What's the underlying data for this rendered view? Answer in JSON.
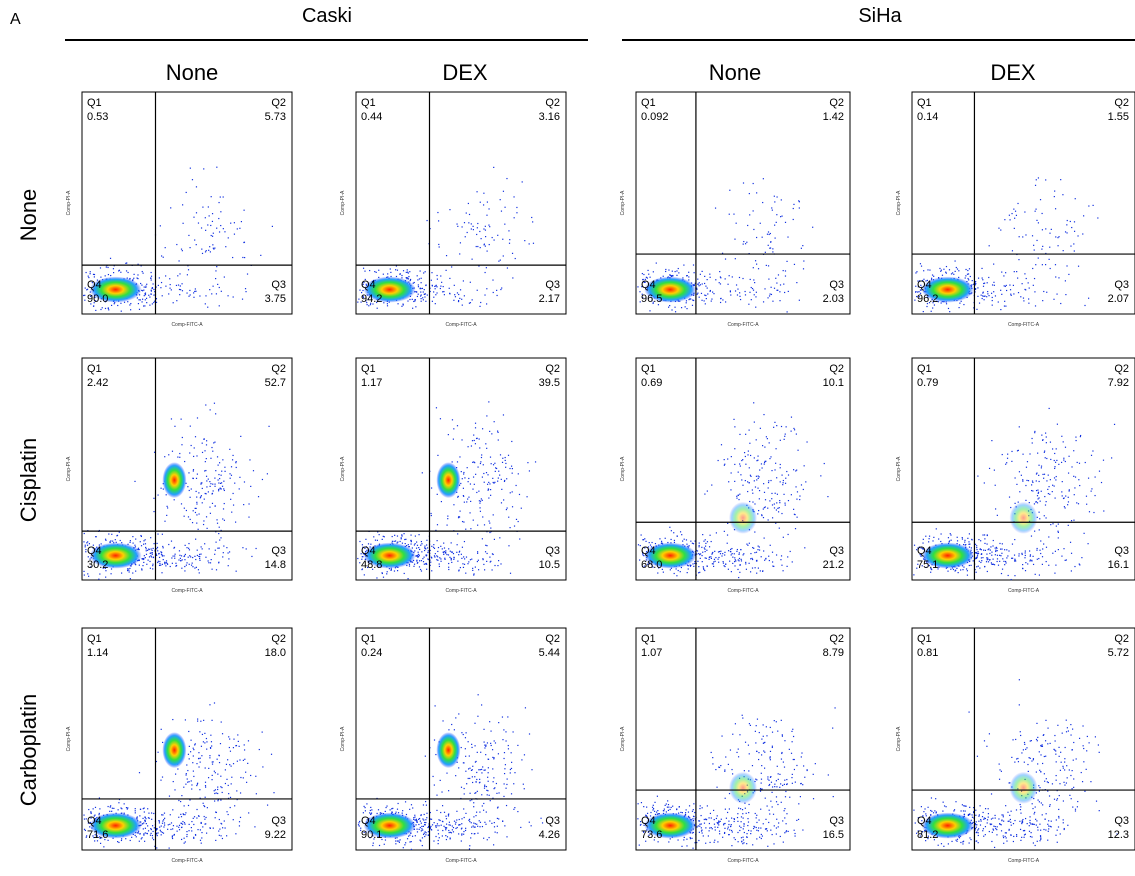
{
  "panel_label": "A",
  "groups": [
    {
      "title": "Caski",
      "columns": [
        "None",
        "DEX"
      ]
    },
    {
      "title": "SiHa",
      "columns": [
        "None",
        "DEX"
      ]
    }
  ],
  "rows": [
    "None",
    "Cisplatin",
    "Carboplatin"
  ],
  "x_axis_label": "Comp-FITC-A",
  "y_axis_label": "Comp-PI-A",
  "plots": [
    {
      "quadrants": [
        {
          "name": "Q1",
          "value": "0.53"
        },
        {
          "name": "Q2",
          "value": "5.73"
        },
        {
          "name": "Q3",
          "value": "3.75"
        },
        {
          "name": "Q4",
          "value": "90.0"
        }
      ]
    },
    {
      "quadrants": [
        {
          "name": "Q1",
          "value": "0.44"
        },
        {
          "name": "Q2",
          "value": "3.16"
        },
        {
          "name": "Q3",
          "value": "2.17"
        },
        {
          "name": "Q4",
          "value": "94.2"
        }
      ]
    },
    {
      "quadrants": [
        {
          "name": "Q1",
          "value": "0.092"
        },
        {
          "name": "Q2",
          "value": "1.42"
        },
        {
          "name": "Q3",
          "value": "2.03"
        },
        {
          "name": "Q4",
          "value": "96.5"
        }
      ]
    },
    {
      "quadrants": [
        {
          "name": "Q1",
          "value": "0.14"
        },
        {
          "name": "Q2",
          "value": "1.55"
        },
        {
          "name": "Q3",
          "value": "2.07"
        },
        {
          "name": "Q4",
          "value": "96.2"
        }
      ]
    },
    {
      "quadrants": [
        {
          "name": "Q1",
          "value": "2.42"
        },
        {
          "name": "Q2",
          "value": "52.7"
        },
        {
          "name": "Q3",
          "value": "14.8"
        },
        {
          "name": "Q4",
          "value": "30.2"
        }
      ]
    },
    {
      "quadrants": [
        {
          "name": "Q1",
          "value": "1.17"
        },
        {
          "name": "Q2",
          "value": "39.5"
        },
        {
          "name": "Q3",
          "value": "10.5"
        },
        {
          "name": "Q4",
          "value": "48.8"
        }
      ]
    },
    {
      "quadrants": [
        {
          "name": "Q1",
          "value": "0.69"
        },
        {
          "name": "Q2",
          "value": "10.1"
        },
        {
          "name": "Q3",
          "value": "21.2"
        },
        {
          "name": "Q4",
          "value": "68.0"
        }
      ]
    },
    {
      "quadrants": [
        {
          "name": "Q1",
          "value": "0.79"
        },
        {
          "name": "Q2",
          "value": "7.92"
        },
        {
          "name": "Q3",
          "value": "16.1"
        },
        {
          "name": "Q4",
          "value": "75.1"
        }
      ]
    },
    {
      "quadrants": [
        {
          "name": "Q1",
          "value": "1.14"
        },
        {
          "name": "Q2",
          "value": "18.0"
        },
        {
          "name": "Q3",
          "value": "9.22"
        },
        {
          "name": "Q4",
          "value": "71.6"
        }
      ]
    },
    {
      "quadrants": [
        {
          "name": "Q1",
          "value": "0.24"
        },
        {
          "name": "Q2",
          "value": "5.44"
        },
        {
          "name": "Q3",
          "value": "4.26"
        },
        {
          "name": "Q4",
          "value": "90.1"
        }
      ]
    },
    {
      "quadrants": [
        {
          "name": "Q1",
          "value": "1.07"
        },
        {
          "name": "Q2",
          "value": "8.79"
        },
        {
          "name": "Q3",
          "value": "16.5"
        },
        {
          "name": "Q4",
          "value": "73.6"
        }
      ]
    },
    {
      "quadrants": [
        {
          "name": "Q1",
          "value": "0.81"
        },
        {
          "name": "Q2",
          "value": "5.72"
        },
        {
          "name": "Q3",
          "value": "12.3"
        },
        {
          "name": "Q4",
          "value": "81.2"
        }
      ]
    }
  ]
}
